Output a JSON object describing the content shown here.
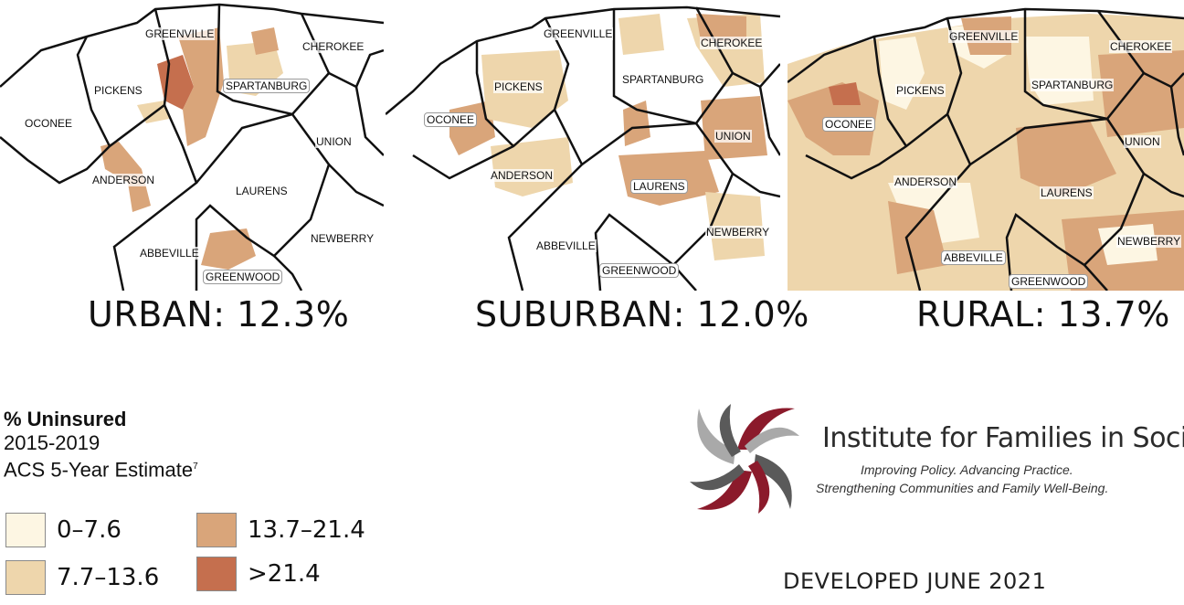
{
  "maps": [
    {
      "id": "urban",
      "caption": "URBAN: 12.3%",
      "counties": [
        "GREENVILLE",
        "CHEROKEE",
        "PICKENS",
        "SPARTANBURG",
        "OCONEE",
        "UNION",
        "ANDERSON",
        "LAURENS",
        "NEWBERRY",
        "ABBEVILLE",
        "GREENWOOD"
      ]
    },
    {
      "id": "suburban",
      "caption": "SUBURBAN: 12.0%",
      "counties": [
        "GREENVILLE",
        "CHEROKEE",
        "PICKENS",
        "SPARTANBURG",
        "OCONEE",
        "UNION",
        "ANDERSON",
        "LAURENS",
        "NEWBERRY",
        "ABBEVILLE",
        "GREENWOOD"
      ]
    },
    {
      "id": "rural",
      "caption": "RURAL: 13.7%",
      "counties": [
        "GREENVILLE",
        "CHEROKEE",
        "PICKENS",
        "SPARTANBURG",
        "OCONEE",
        "UNION",
        "ANDERSON",
        "LAURENS",
        "NEWBERRY",
        "ABBEVILLE",
        "GREENWOOD"
      ]
    }
  ],
  "legend": {
    "title": "% Uninsured",
    "years": "2015-2019",
    "source": "ACS 5-Year Estimate",
    "footnote": "7",
    "bins": [
      {
        "label": "0–7.6",
        "color": "#fdf6e3"
      },
      {
        "label": "7.7–13.6",
        "color": "#eed6ac"
      },
      {
        "label": "13.7–21.4",
        "color": "#d9a57a"
      },
      {
        "label": ">21.4",
        "color": "#c56f4e"
      }
    ]
  },
  "organization": {
    "name": "Institute for Families in Society",
    "tagline_line1": "Improving Policy. Advancing Practice.",
    "tagline_line2": "Strengthening Communities and Family Well-Being.",
    "brand_colors": [
      "#8b1a2b",
      "#5a5a5a",
      "#a9a9a9"
    ]
  },
  "developed": "DEVELOPED JUNE 2021"
}
